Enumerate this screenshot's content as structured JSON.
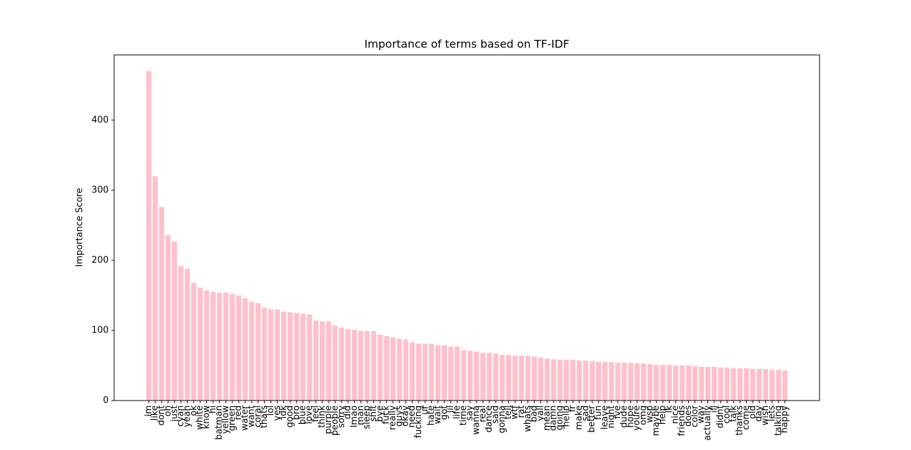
{
  "chart_data": {
    "type": "bar",
    "title": "Importance of terms based on TF-IDF",
    "y_label": "Importance Score",
    "categories": [
      "im",
      "like",
      "dont",
      "oh",
      "just",
      "cyan",
      "yeah",
      "ok",
      "white",
      "know",
      "hi",
      "batman",
      "yellow",
      "green",
      "red",
      "water",
      "want",
      "coral",
      "thats",
      "lol",
      "yes",
      "idk",
      "good",
      "bro",
      "blue",
      "love",
      "feel",
      "think",
      "purple",
      "people",
      "sorry",
      "did",
      "lmao",
      "man",
      "sleep",
      "shit",
      "bye",
      "fuck",
      "really",
      "guys",
      "okay",
      "need",
      "fucking",
      "ur",
      "hate",
      "wait",
      "got",
      "lil",
      "life",
      "time",
      "say",
      "wanna",
      "real",
      "dance",
      "said",
      "gonna",
      "tell",
      "wtf",
      "rat",
      "whats",
      "bad",
      "yall",
      "mean",
      "damn",
      "going",
      "hello",
      "fr",
      "make",
      "sad",
      "better",
      "fun",
      "leave",
      "night",
      "ive",
      "dude",
      "hope",
      "youre",
      "omg",
      "wsp",
      "maybe",
      "help",
      "lk",
      "nice",
      "friends",
      "does",
      "color",
      "way",
      "actually",
      "ill",
      "didnt",
      "cool",
      "talk",
      "thanks",
      "come",
      "old",
      "day",
      "wish",
      "lets",
      "talking",
      "happy"
    ],
    "values": [
      470,
      320,
      276,
      236,
      227,
      192,
      188,
      168,
      161,
      157,
      155,
      154,
      154,
      152,
      150,
      146,
      141,
      139,
      132,
      130,
      130,
      127,
      126,
      125,
      124,
      123,
      114,
      113,
      113,
      107,
      104,
      102,
      101,
      99,
      99,
      99,
      94,
      92,
      90,
      88,
      87,
      83,
      81,
      81,
      81,
      79,
      79,
      77,
      77,
      72,
      71,
      70,
      68,
      68,
      67,
      65,
      65,
      64,
      64,
      64,
      63,
      61,
      60,
      59,
      58,
      58,
      58,
      57,
      57,
      56,
      55,
      55,
      55,
      54,
      54,
      54,
      53,
      53,
      52,
      51,
      51,
      51,
      50,
      50,
      50,
      49,
      48,
      48,
      48,
      47,
      47,
      46,
      46,
      46,
      45,
      45,
      45,
      44,
      44,
      43
    ],
    "color": "#ffc0cb",
    "ylim": [
      0,
      493
    ],
    "yticks": [
      0,
      100,
      200,
      300,
      400
    ],
    "grid": false
  }
}
